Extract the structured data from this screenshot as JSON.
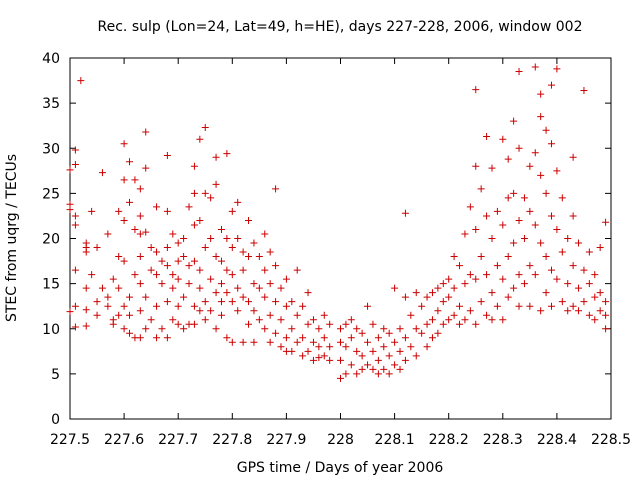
{
  "chart_data": {
    "type": "scatter",
    "title": "Rec. sulp (Lon=24, Lat=49, h=HE), days 227-228, 2006, window 002",
    "xlabel": "GPS time / Days of year 2006",
    "ylabel": "STEC from uqrg / TECUs",
    "xlim": [
      227.5,
      228.5
    ],
    "ylim": [
      0,
      40
    ],
    "xticks": [
      "227.5",
      "227.6",
      "227.7",
      "227.8",
      "227.9",
      "228",
      "228.1",
      "228.2",
      "228.3",
      "228.4",
      "228.5"
    ],
    "yticks": [
      "0",
      "5",
      "10",
      "15",
      "20",
      "25",
      "30",
      "35",
      "40"
    ],
    "grid": false,
    "marker": "plus",
    "color": "#cc0000",
    "points": [
      [
        227.5,
        27.6
      ],
      [
        227.5,
        23.8
      ],
      [
        227.5,
        23.2
      ],
      [
        227.5,
        11.9
      ],
      [
        227.51,
        28.2
      ],
      [
        227.51,
        29.8
      ],
      [
        227.51,
        22.5
      ],
      [
        227.51,
        21.5
      ],
      [
        227.51,
        16.5
      ],
      [
        227.51,
        12.5
      ],
      [
        227.51,
        10.2
      ],
      [
        227.52,
        37.5
      ],
      [
        227.53,
        19.5
      ],
      [
        227.53,
        19.0
      ],
      [
        227.53,
        18.5
      ],
      [
        227.53,
        14.5
      ],
      [
        227.53,
        12.1
      ],
      [
        227.53,
        10.3
      ],
      [
        227.54,
        23.0
      ],
      [
        227.54,
        16.0
      ],
      [
        227.55,
        13.0
      ],
      [
        227.55,
        11.5
      ],
      [
        227.55,
        19.0
      ],
      [
        227.56,
        27.3
      ],
      [
        227.56,
        14.5
      ],
      [
        227.57,
        20.5
      ],
      [
        227.57,
        13.5
      ],
      [
        227.57,
        12.5
      ],
      [
        227.58,
        15.5
      ],
      [
        227.58,
        11.0
      ],
      [
        227.58,
        10.5
      ],
      [
        227.59,
        23.0
      ],
      [
        227.59,
        18.0
      ],
      [
        227.59,
        14.5
      ],
      [
        227.59,
        11.5
      ],
      [
        227.6,
        30.5
      ],
      [
        227.6,
        26.5
      ],
      [
        227.6,
        22.0
      ],
      [
        227.6,
        17.5
      ],
      [
        227.6,
        12.5
      ],
      [
        227.6,
        10.0
      ],
      [
        227.61,
        28.5
      ],
      [
        227.61,
        24.0
      ],
      [
        227.61,
        13.5
      ],
      [
        227.61,
        11.5
      ],
      [
        227.61,
        9.5
      ],
      [
        227.62,
        26.5
      ],
      [
        227.62,
        21.0
      ],
      [
        227.62,
        16.0
      ],
      [
        227.62,
        9.0
      ],
      [
        227.63,
        25.5
      ],
      [
        227.63,
        22.5
      ],
      [
        227.63,
        20.5
      ],
      [
        227.63,
        18.0
      ],
      [
        227.63,
        15.0
      ],
      [
        227.63,
        12.0
      ],
      [
        227.63,
        9.0
      ],
      [
        227.64,
        31.8
      ],
      [
        227.64,
        27.8
      ],
      [
        227.64,
        20.7
      ],
      [
        227.64,
        13.5
      ],
      [
        227.64,
        10.0
      ],
      [
        227.65,
        19.0
      ],
      [
        227.65,
        16.5
      ],
      [
        227.65,
        11.0
      ],
      [
        227.66,
        23.5
      ],
      [
        227.66,
        18.5
      ],
      [
        227.66,
        16.0
      ],
      [
        227.66,
        12.5
      ],
      [
        227.66,
        9.0
      ],
      [
        227.67,
        17.5
      ],
      [
        227.67,
        15.0
      ],
      [
        227.67,
        10.0
      ],
      [
        227.68,
        29.2
      ],
      [
        227.68,
        23.0
      ],
      [
        227.68,
        19.0
      ],
      [
        227.68,
        17.0
      ],
      [
        227.68,
        13.0
      ],
      [
        227.68,
        9.0
      ],
      [
        227.69,
        20.5
      ],
      [
        227.69,
        16.0
      ],
      [
        227.69,
        14.5
      ],
      [
        227.69,
        11.0
      ],
      [
        227.7,
        19.5
      ],
      [
        227.7,
        17.5
      ],
      [
        227.7,
        15.5
      ],
      [
        227.7,
        12.5
      ],
      [
        227.7,
        10.5
      ],
      [
        227.71,
        20.0
      ],
      [
        227.71,
        18.0
      ],
      [
        227.71,
        13.5
      ],
      [
        227.71,
        10.0
      ],
      [
        227.72,
        23.5
      ],
      [
        227.72,
        17.0
      ],
      [
        227.72,
        15.0
      ],
      [
        227.72,
        10.5
      ],
      [
        227.73,
        28.0
      ],
      [
        227.73,
        25.0
      ],
      [
        227.73,
        21.5
      ],
      [
        227.73,
        17.5
      ],
      [
        227.73,
        12.5
      ],
      [
        227.73,
        10.5
      ],
      [
        227.74,
        31.0
      ],
      [
        227.74,
        22.0
      ],
      [
        227.74,
        16.5
      ],
      [
        227.74,
        14.5
      ],
      [
        227.74,
        12.0
      ],
      [
        227.75,
        32.3
      ],
      [
        227.75,
        25.0
      ],
      [
        227.75,
        19.0
      ],
      [
        227.75,
        13.0
      ],
      [
        227.75,
        11.0
      ],
      [
        227.76,
        24.5
      ],
      [
        227.76,
        20.0
      ],
      [
        227.76,
        15.5
      ],
      [
        227.76,
        12.0
      ],
      [
        227.77,
        29.0
      ],
      [
        227.77,
        26.0
      ],
      [
        227.77,
        18.0
      ],
      [
        227.77,
        14.0
      ],
      [
        227.77,
        10.0
      ],
      [
        227.78,
        21.0
      ],
      [
        227.78,
        17.5
      ],
      [
        227.78,
        15.0
      ],
      [
        227.78,
        13.0
      ],
      [
        227.78,
        11.5
      ],
      [
        227.79,
        29.4
      ],
      [
        227.79,
        20.0
      ],
      [
        227.79,
        16.5
      ],
      [
        227.79,
        14.0
      ],
      [
        227.79,
        9.0
      ],
      [
        227.8,
        23.0
      ],
      [
        227.8,
        19.0
      ],
      [
        227.8,
        16.0
      ],
      [
        227.8,
        13.0
      ],
      [
        227.8,
        8.5
      ],
      [
        227.81,
        24.0
      ],
      [
        227.81,
        20.0
      ],
      [
        227.81,
        14.5
      ],
      [
        227.81,
        12.0
      ],
      [
        227.82,
        18.5
      ],
      [
        227.82,
        16.5
      ],
      [
        227.82,
        13.5
      ],
      [
        227.82,
        8.5
      ],
      [
        227.83,
        22.0
      ],
      [
        227.83,
        18.0
      ],
      [
        227.83,
        13.0
      ],
      [
        227.83,
        10.5
      ],
      [
        227.84,
        19.5
      ],
      [
        227.84,
        15.0
      ],
      [
        227.84,
        12.0
      ],
      [
        227.84,
        8.5
      ],
      [
        227.85,
        18.0
      ],
      [
        227.85,
        14.5
      ],
      [
        227.85,
        11.0
      ],
      [
        227.86,
        20.5
      ],
      [
        227.86,
        16.5
      ],
      [
        227.86,
        13.5
      ],
      [
        227.86,
        10.0
      ],
      [
        227.87,
        18.5
      ],
      [
        227.87,
        15.0
      ],
      [
        227.87,
        11.5
      ],
      [
        227.87,
        8.5
      ],
      [
        227.88,
        25.5
      ],
      [
        227.88,
        17.0
      ],
      [
        227.88,
        13.0
      ],
      [
        227.88,
        9.5
      ],
      [
        227.89,
        14.5
      ],
      [
        227.89,
        11.0
      ],
      [
        227.89,
        8.0
      ],
      [
        227.9,
        15.5
      ],
      [
        227.9,
        12.5
      ],
      [
        227.9,
        9.0
      ],
      [
        227.9,
        7.5
      ],
      [
        227.91,
        13.0
      ],
      [
        227.91,
        10.0
      ],
      [
        227.91,
        7.5
      ],
      [
        227.92,
        16.5
      ],
      [
        227.92,
        11.5
      ],
      [
        227.92,
        8.5
      ],
      [
        227.93,
        12.5
      ],
      [
        227.93,
        9.0
      ],
      [
        227.93,
        7.0
      ],
      [
        227.94,
        14.0
      ],
      [
        227.94,
        10.5
      ],
      [
        227.94,
        7.5
      ],
      [
        227.95,
        11.0
      ],
      [
        227.95,
        8.5
      ],
      [
        227.95,
        6.5
      ],
      [
        227.96,
        10.0
      ],
      [
        227.96,
        8.0
      ],
      [
        227.96,
        6.8
      ],
      [
        227.97,
        11.5
      ],
      [
        227.97,
        9.0
      ],
      [
        227.97,
        7.0
      ],
      [
        227.98,
        10.5
      ],
      [
        227.98,
        8.0
      ],
      [
        227.98,
        6.5
      ],
      [
        228.0,
        10.0
      ],
      [
        228.0,
        8.5
      ],
      [
        228.0,
        6.5
      ],
      [
        228.0,
        4.5
      ],
      [
        228.01,
        10.5
      ],
      [
        228.01,
        8.0
      ],
      [
        228.01,
        5.0
      ],
      [
        228.02,
        11.0
      ],
      [
        228.02,
        9.0
      ],
      [
        228.02,
        6.0
      ],
      [
        228.03,
        10.0
      ],
      [
        228.03,
        7.5
      ],
      [
        228.03,
        5.0
      ],
      [
        228.04,
        9.5
      ],
      [
        228.04,
        7.0
      ],
      [
        228.04,
        5.5
      ],
      [
        228.05,
        12.5
      ],
      [
        228.05,
        8.5
      ],
      [
        228.05,
        6.0
      ],
      [
        228.06,
        10.5
      ],
      [
        228.06,
        7.5
      ],
      [
        228.06,
        5.5
      ],
      [
        228.07,
        9.0
      ],
      [
        228.07,
        6.5
      ],
      [
        228.07,
        5.0
      ],
      [
        228.08,
        10.0
      ],
      [
        228.08,
        8.0
      ],
      [
        228.08,
        5.5
      ],
      [
        228.09,
        9.5
      ],
      [
        228.09,
        7.0
      ],
      [
        228.09,
        5.0
      ],
      [
        228.1,
        14.5
      ],
      [
        228.1,
        8.5
      ],
      [
        228.1,
        6.0
      ],
      [
        228.11,
        10.0
      ],
      [
        228.11,
        7.5
      ],
      [
        228.11,
        5.5
      ],
      [
        228.12,
        22.8
      ],
      [
        228.12,
        13.5
      ],
      [
        228.12,
        9.0
      ],
      [
        228.12,
        6.5
      ],
      [
        228.13,
        11.5
      ],
      [
        228.13,
        8.0
      ],
      [
        228.14,
        14.0
      ],
      [
        228.14,
        10.0
      ],
      [
        228.14,
        7.0
      ],
      [
        228.15,
        12.5
      ],
      [
        228.15,
        9.5
      ],
      [
        228.16,
        13.5
      ],
      [
        228.16,
        10.5
      ],
      [
        228.16,
        8.0
      ],
      [
        228.17,
        14.0
      ],
      [
        228.17,
        11.0
      ],
      [
        228.17,
        9.0
      ],
      [
        228.18,
        14.5
      ],
      [
        228.18,
        12.0
      ],
      [
        228.18,
        9.5
      ],
      [
        228.19,
        15.0
      ],
      [
        228.19,
        13.0
      ],
      [
        228.19,
        10.5
      ],
      [
        228.2,
        15.5
      ],
      [
        228.2,
        13.5
      ],
      [
        228.2,
        11.0
      ],
      [
        228.21,
        18.0
      ],
      [
        228.21,
        14.5
      ],
      [
        228.21,
        11.5
      ],
      [
        228.22,
        17.0
      ],
      [
        228.22,
        12.5
      ],
      [
        228.22,
        10.5
      ],
      [
        228.23,
        20.5
      ],
      [
        228.23,
        15.0
      ],
      [
        228.23,
        11.0
      ],
      [
        228.24,
        23.5
      ],
      [
        228.24,
        16.0
      ],
      [
        228.24,
        12.0
      ],
      [
        228.25,
        36.5
      ],
      [
        228.25,
        28.0
      ],
      [
        228.25,
        21.0
      ],
      [
        228.25,
        15.5
      ],
      [
        228.25,
        10.5
      ],
      [
        228.26,
        25.5
      ],
      [
        228.26,
        18.0
      ],
      [
        228.26,
        13.0
      ],
      [
        228.27,
        31.3
      ],
      [
        228.27,
        22.5
      ],
      [
        228.27,
        16.0
      ],
      [
        228.27,
        11.5
      ],
      [
        228.28,
        27.8
      ],
      [
        228.28,
        20.0
      ],
      [
        228.28,
        14.0
      ],
      [
        228.28,
        11.0
      ],
      [
        228.29,
        23.0
      ],
      [
        228.29,
        17.0
      ],
      [
        228.29,
        12.5
      ],
      [
        228.3,
        31.0
      ],
      [
        228.3,
        21.5
      ],
      [
        228.3,
        15.5
      ],
      [
        228.3,
        11.0
      ],
      [
        228.31,
        28.8
      ],
      [
        228.31,
        24.5
      ],
      [
        228.31,
        18.0
      ],
      [
        228.31,
        13.5
      ],
      [
        228.32,
        33.0
      ],
      [
        228.32,
        25.0
      ],
      [
        228.32,
        19.5
      ],
      [
        228.32,
        14.5
      ],
      [
        228.33,
        38.5
      ],
      [
        228.33,
        30.0
      ],
      [
        228.33,
        22.0
      ],
      [
        228.33,
        16.0
      ],
      [
        228.33,
        12.5
      ],
      [
        228.34,
        24.5
      ],
      [
        228.34,
        20.0
      ],
      [
        228.34,
        15.0
      ],
      [
        228.35,
        28.0
      ],
      [
        228.35,
        23.0
      ],
      [
        228.35,
        17.0
      ],
      [
        228.35,
        12.5
      ],
      [
        228.36,
        39.0
      ],
      [
        228.36,
        29.5
      ],
      [
        228.36,
        21.5
      ],
      [
        228.36,
        16.0
      ],
      [
        228.37,
        36.0
      ],
      [
        228.37,
        33.5
      ],
      [
        228.37,
        27.0
      ],
      [
        228.37,
        19.5
      ],
      [
        228.37,
        12.0
      ],
      [
        228.38,
        32.0
      ],
      [
        228.38,
        25.0
      ],
      [
        228.38,
        18.0
      ],
      [
        228.38,
        14.0
      ],
      [
        228.39,
        37.0
      ],
      [
        228.39,
        30.5
      ],
      [
        228.39,
        22.5
      ],
      [
        228.39,
        16.5
      ],
      [
        228.39,
        12.5
      ],
      [
        228.4,
        38.8
      ],
      [
        228.4,
        27.5
      ],
      [
        228.4,
        21.0
      ],
      [
        228.4,
        15.5
      ],
      [
        228.41,
        24.5
      ],
      [
        228.41,
        18.5
      ],
      [
        228.41,
        13.0
      ],
      [
        228.42,
        20.0
      ],
      [
        228.42,
        15.0
      ],
      [
        228.42,
        12.0
      ],
      [
        228.43,
        29.0
      ],
      [
        228.43,
        22.5
      ],
      [
        228.43,
        17.0
      ],
      [
        228.43,
        12.5
      ],
      [
        228.44,
        19.5
      ],
      [
        228.44,
        14.5
      ],
      [
        228.44,
        12.0
      ],
      [
        228.45,
        36.4
      ],
      [
        228.45,
        16.5
      ],
      [
        228.45,
        13.0
      ],
      [
        228.46,
        18.5
      ],
      [
        228.46,
        15.0
      ],
      [
        228.46,
        11.5
      ],
      [
        228.47,
        16.0
      ],
      [
        228.47,
        13.5
      ],
      [
        228.47,
        11.0
      ],
      [
        228.48,
        19.0
      ],
      [
        228.48,
        14.0
      ],
      [
        228.48,
        12.0
      ],
      [
        228.49,
        21.8
      ],
      [
        228.49,
        13.0
      ],
      [
        228.49,
        11.5
      ],
      [
        228.49,
        10.0
      ]
    ]
  }
}
